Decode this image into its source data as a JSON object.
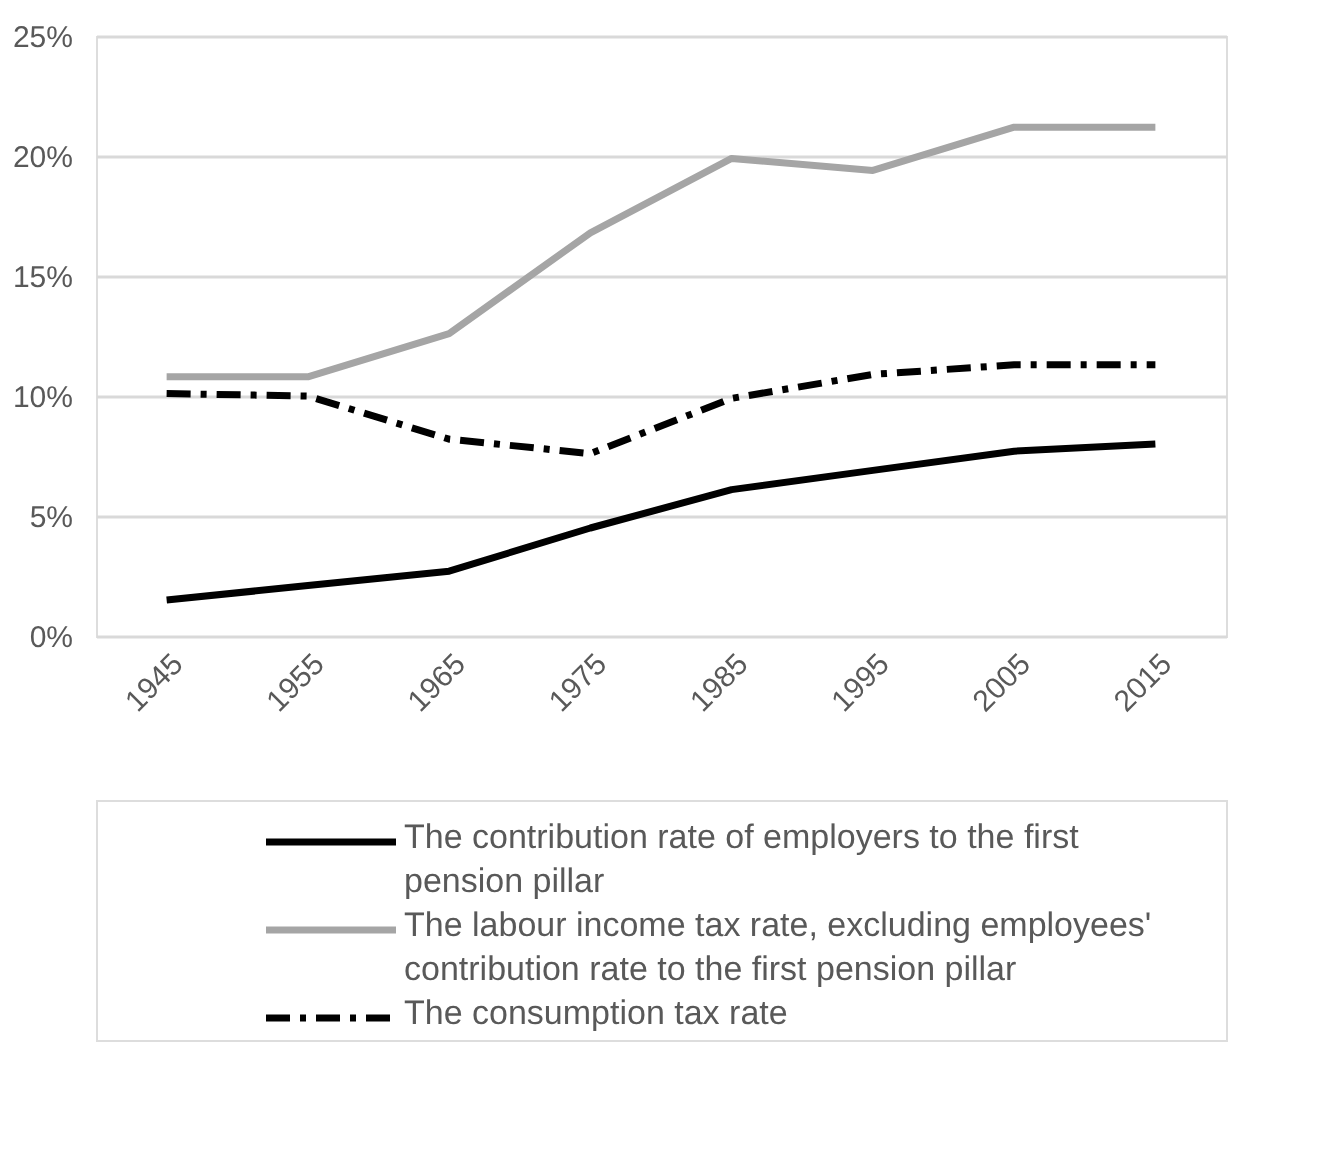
{
  "chart_data": {
    "type": "line",
    "categories": [
      "1945",
      "1955",
      "1965",
      "1975",
      "1985",
      "1995",
      "2005",
      "2015"
    ],
    "series": [
      {
        "name": "The contribution rate of employers to the first pension pillar",
        "color": "#000000",
        "line_style": "solid",
        "values": [
          1.5,
          2.1,
          2.7,
          4.5,
          6.1,
          6.9,
          7.7,
          8.0
        ]
      },
      {
        "name": "The labour income tax rate, excluding employees' contribution rate to the first pension pillar",
        "color": "#a5a5a5",
        "line_style": "solid",
        "values": [
          10.8,
          10.8,
          12.6,
          16.8,
          19.9,
          19.4,
          21.2,
          21.2
        ]
      },
      {
        "name": "The consumption tax rate",
        "color": "#000000",
        "line_style": "dashed",
        "values": [
          10.1,
          10.0,
          8.2,
          7.6,
          9.9,
          10.9,
          11.3,
          11.3
        ]
      }
    ],
    "ylim": [
      0,
      25
    ],
    "yticks": [
      {
        "value": 0,
        "label": "0%"
      },
      {
        "value": 5,
        "label": "5%"
      },
      {
        "value": 10,
        "label": "10%"
      },
      {
        "value": 15,
        "label": "15%"
      },
      {
        "value": 20,
        "label": "20%"
      },
      {
        "value": 25,
        "label": "25%"
      }
    ],
    "grid": "y",
    "legend": "bottom"
  }
}
